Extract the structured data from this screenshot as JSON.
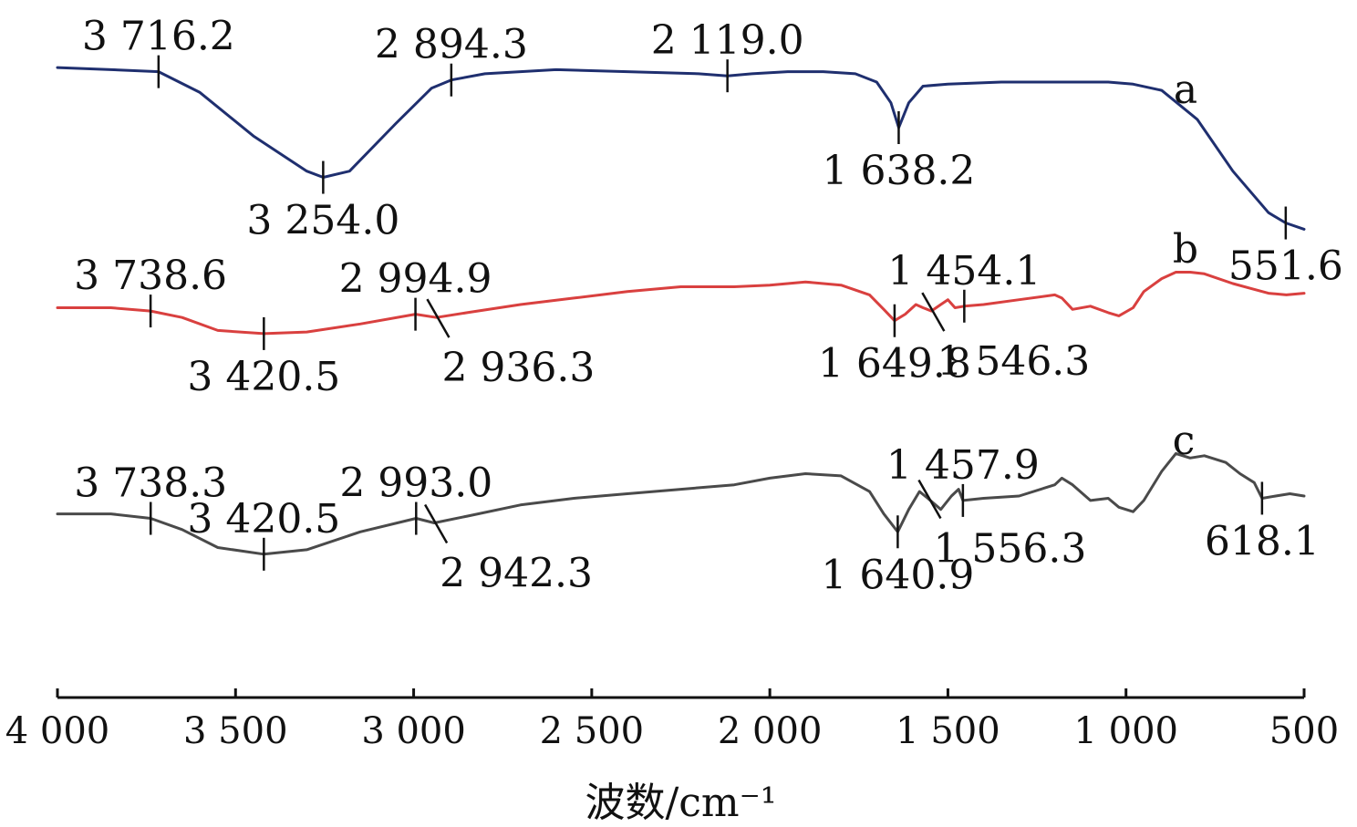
{
  "chart_data": {
    "type": "line",
    "xlabel": "波数/cm⁻¹",
    "xlim": [
      4000,
      500
    ],
    "x_reversed": true,
    "xticks": [
      4000,
      3500,
      3000,
      2500,
      2000,
      1500,
      1000,
      500
    ],
    "xtick_labels": [
      "4 000",
      "3 500",
      "3 000",
      "2 500",
      "2 000",
      "1 500",
      "1 000",
      "500"
    ],
    "y_ticks_shown": false,
    "grid": false,
    "series": [
      {
        "name": "a",
        "color": "#1f2f6f",
        "x": [
          4000,
          3850,
          3716.2,
          3600,
          3450,
          3300,
          3254,
          3180,
          3050,
          2950,
          2894.3,
          2800,
          2600,
          2400,
          2200,
          2119,
          2050,
          1950,
          1850,
          1760,
          1700,
          1660,
          1638.2,
          1610,
          1570,
          1500,
          1350,
          1200,
          1050,
          980,
          900,
          800,
          700,
          600,
          551.6,
          500
        ],
        "y": [
          95,
          94,
          93,
          83,
          62,
          45,
          42,
          45,
          68,
          85,
          89,
          92,
          94,
          93,
          92,
          91,
          92,
          93,
          93,
          92,
          88,
          78,
          66,
          78,
          86,
          87,
          88,
          88,
          88,
          87,
          84,
          70,
          45,
          25,
          20,
          17
        ]
      },
      {
        "name": "b",
        "color": "#d9403f",
        "x": [
          4000,
          3850,
          3738.6,
          3650,
          3550,
          3420.5,
          3300,
          3150,
          2994.9,
          2936.3,
          2850,
          2700,
          2550,
          2400,
          2250,
          2100,
          2000,
          1900,
          1800,
          1720,
          1680,
          1649.8,
          1620,
          1590,
          1570,
          1546.3,
          1520,
          1500,
          1480,
          1454.1,
          1400,
          1300,
          1200,
          1180,
          1150,
          1100,
          1050,
          1020,
          980,
          950,
          900,
          860,
          820,
          780,
          700,
          650,
          600,
          550,
          500
        ],
        "y": [
          86,
          86,
          84,
          80,
          72,
          70,
          71,
          76,
          82,
          80,
          83,
          88,
          92,
          96,
          99,
          99,
          100,
          102,
          100,
          94,
          85,
          78,
          82,
          88,
          86,
          84,
          88,
          91,
          86,
          87,
          88,
          91,
          94,
          92,
          85,
          87,
          83,
          81,
          86,
          96,
          104,
          108,
          108,
          107,
          101,
          98,
          95,
          94,
          95
        ]
      },
      {
        "name": "c",
        "color": "#4a4a4a",
        "x": [
          4000,
          3850,
          3738.3,
          3650,
          3550,
          3420.5,
          3300,
          3150,
          2993,
          2942.3,
          2850,
          2700,
          2550,
          2400,
          2250,
          2100,
          2000,
          1900,
          1800,
          1720,
          1680,
          1640.9,
          1610,
          1580,
          1556.3,
          1520,
          1490,
          1470,
          1457.9,
          1400,
          1300,
          1200,
          1180,
          1150,
          1100,
          1050,
          1020,
          980,
          950,
          900,
          860,
          820,
          780,
          720,
          680,
          640,
          618.1,
          580,
          540,
          500
        ],
        "y": [
          80,
          80,
          78,
          73,
          65,
          62,
          64,
          72,
          78,
          76,
          79,
          84,
          87,
          89,
          91,
          93,
          96,
          98,
          97,
          90,
          80,
          72,
          82,
          90,
          87,
          82,
          88,
          91,
          86,
          87,
          88,
          93,
          96,
          93,
          86,
          87,
          83,
          81,
          86,
          99,
          107,
          105,
          106,
          103,
          98,
          94,
          87,
          88,
          89,
          88
        ]
      }
    ],
    "annotations": [
      {
        "series": "a",
        "x": 3716.2,
        "text": "3 716.2",
        "side": "above"
      },
      {
        "series": "a",
        "x": 3254.0,
        "text": "3 254.0",
        "side": "below"
      },
      {
        "series": "a",
        "x": 2894.3,
        "text": "2 894.3",
        "side": "above"
      },
      {
        "series": "a",
        "x": 2119.0,
        "text": "2 119.0",
        "side": "above"
      },
      {
        "series": "a",
        "x": 1638.2,
        "text": "1 638.2",
        "side": "below"
      },
      {
        "series": "a",
        "x": 551.6,
        "text": "551.6",
        "side": "below"
      },
      {
        "series": "b",
        "x": 3738.6,
        "text": "3 738.6",
        "side": "above"
      },
      {
        "series": "b",
        "x": 3420.5,
        "text": "3 420.5",
        "side": "below"
      },
      {
        "series": "b",
        "x": 2994.9,
        "text": "2 994.9",
        "side": "above"
      },
      {
        "series": "b",
        "x": 2936.3,
        "text": "2 936.3",
        "side": "below-right"
      },
      {
        "series": "b",
        "x": 1649.8,
        "text": "1 649.8",
        "side": "below"
      },
      {
        "series": "b",
        "x": 1546.3,
        "text": "1 546.3",
        "side": "below-right"
      },
      {
        "series": "b",
        "x": 1454.1,
        "text": "1 454.1",
        "side": "above"
      },
      {
        "series": "c",
        "x": 3738.3,
        "text": "3 738.3",
        "side": "above"
      },
      {
        "series": "c",
        "x": 3420.5,
        "text": "3 420.5",
        "side": "above"
      },
      {
        "series": "c",
        "x": 2993.0,
        "text": "2 993.0",
        "side": "above"
      },
      {
        "series": "c",
        "x": 2942.3,
        "text": "2 942.3",
        "side": "below-right"
      },
      {
        "series": "c",
        "x": 1640.9,
        "text": "1 640.9",
        "side": "below"
      },
      {
        "series": "c",
        "x": 1556.3,
        "text": "1 556.3",
        "side": "below-right"
      },
      {
        "series": "c",
        "x": 1457.9,
        "text": "1 457.9",
        "side": "above"
      },
      {
        "series": "c",
        "x": 618.1,
        "text": "618.1",
        "side": "below"
      }
    ]
  }
}
